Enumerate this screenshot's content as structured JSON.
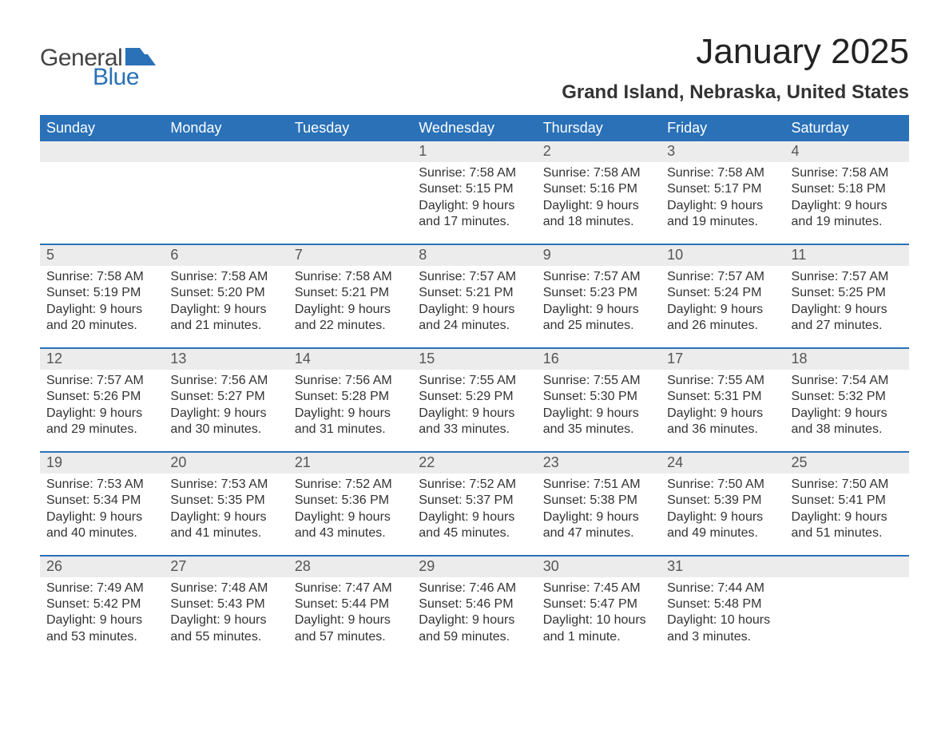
{
  "logo": {
    "text_general": "General",
    "text_blue": "Blue",
    "icon_color": "#2a71b8"
  },
  "header": {
    "month_title": "January 2025",
    "location": "Grand Island, Nebraska, United States"
  },
  "colors": {
    "header_bar": "#2a71b8",
    "daynum_strip_bg": "#ececec",
    "text": "#333333",
    "background": "#ffffff"
  },
  "typography": {
    "month_title_fontsize": 44,
    "location_fontsize": 24,
    "dow_fontsize": 18,
    "daynum_fontsize": 18,
    "body_fontsize": 16
  },
  "days_of_week": [
    "Sunday",
    "Monday",
    "Tuesday",
    "Wednesday",
    "Thursday",
    "Friday",
    "Saturday"
  ],
  "weeks": [
    [
      null,
      null,
      null,
      {
        "n": "1",
        "sunrise": "Sunrise: 7:58 AM",
        "sunset": "Sunset: 5:15 PM",
        "daylight": "Daylight: 9 hours and 17 minutes."
      },
      {
        "n": "2",
        "sunrise": "Sunrise: 7:58 AM",
        "sunset": "Sunset: 5:16 PM",
        "daylight": "Daylight: 9 hours and 18 minutes."
      },
      {
        "n": "3",
        "sunrise": "Sunrise: 7:58 AM",
        "sunset": "Sunset: 5:17 PM",
        "daylight": "Daylight: 9 hours and 19 minutes."
      },
      {
        "n": "4",
        "sunrise": "Sunrise: 7:58 AM",
        "sunset": "Sunset: 5:18 PM",
        "daylight": "Daylight: 9 hours and 19 minutes."
      }
    ],
    [
      {
        "n": "5",
        "sunrise": "Sunrise: 7:58 AM",
        "sunset": "Sunset: 5:19 PM",
        "daylight": "Daylight: 9 hours and 20 minutes."
      },
      {
        "n": "6",
        "sunrise": "Sunrise: 7:58 AM",
        "sunset": "Sunset: 5:20 PM",
        "daylight": "Daylight: 9 hours and 21 minutes."
      },
      {
        "n": "7",
        "sunrise": "Sunrise: 7:58 AM",
        "sunset": "Sunset: 5:21 PM",
        "daylight": "Daylight: 9 hours and 22 minutes."
      },
      {
        "n": "8",
        "sunrise": "Sunrise: 7:57 AM",
        "sunset": "Sunset: 5:21 PM",
        "daylight": "Daylight: 9 hours and 24 minutes."
      },
      {
        "n": "9",
        "sunrise": "Sunrise: 7:57 AM",
        "sunset": "Sunset: 5:23 PM",
        "daylight": "Daylight: 9 hours and 25 minutes."
      },
      {
        "n": "10",
        "sunrise": "Sunrise: 7:57 AM",
        "sunset": "Sunset: 5:24 PM",
        "daylight": "Daylight: 9 hours and 26 minutes."
      },
      {
        "n": "11",
        "sunrise": "Sunrise: 7:57 AM",
        "sunset": "Sunset: 5:25 PM",
        "daylight": "Daylight: 9 hours and 27 minutes."
      }
    ],
    [
      {
        "n": "12",
        "sunrise": "Sunrise: 7:57 AM",
        "sunset": "Sunset: 5:26 PM",
        "daylight": "Daylight: 9 hours and 29 minutes."
      },
      {
        "n": "13",
        "sunrise": "Sunrise: 7:56 AM",
        "sunset": "Sunset: 5:27 PM",
        "daylight": "Daylight: 9 hours and 30 minutes."
      },
      {
        "n": "14",
        "sunrise": "Sunrise: 7:56 AM",
        "sunset": "Sunset: 5:28 PM",
        "daylight": "Daylight: 9 hours and 31 minutes."
      },
      {
        "n": "15",
        "sunrise": "Sunrise: 7:55 AM",
        "sunset": "Sunset: 5:29 PM",
        "daylight": "Daylight: 9 hours and 33 minutes."
      },
      {
        "n": "16",
        "sunrise": "Sunrise: 7:55 AM",
        "sunset": "Sunset: 5:30 PM",
        "daylight": "Daylight: 9 hours and 35 minutes."
      },
      {
        "n": "17",
        "sunrise": "Sunrise: 7:55 AM",
        "sunset": "Sunset: 5:31 PM",
        "daylight": "Daylight: 9 hours and 36 minutes."
      },
      {
        "n": "18",
        "sunrise": "Sunrise: 7:54 AM",
        "sunset": "Sunset: 5:32 PM",
        "daylight": "Daylight: 9 hours and 38 minutes."
      }
    ],
    [
      {
        "n": "19",
        "sunrise": "Sunrise: 7:53 AM",
        "sunset": "Sunset: 5:34 PM",
        "daylight": "Daylight: 9 hours and 40 minutes."
      },
      {
        "n": "20",
        "sunrise": "Sunrise: 7:53 AM",
        "sunset": "Sunset: 5:35 PM",
        "daylight": "Daylight: 9 hours and 41 minutes."
      },
      {
        "n": "21",
        "sunrise": "Sunrise: 7:52 AM",
        "sunset": "Sunset: 5:36 PM",
        "daylight": "Daylight: 9 hours and 43 minutes."
      },
      {
        "n": "22",
        "sunrise": "Sunrise: 7:52 AM",
        "sunset": "Sunset: 5:37 PM",
        "daylight": "Daylight: 9 hours and 45 minutes."
      },
      {
        "n": "23",
        "sunrise": "Sunrise: 7:51 AM",
        "sunset": "Sunset: 5:38 PM",
        "daylight": "Daylight: 9 hours and 47 minutes."
      },
      {
        "n": "24",
        "sunrise": "Sunrise: 7:50 AM",
        "sunset": "Sunset: 5:39 PM",
        "daylight": "Daylight: 9 hours and 49 minutes."
      },
      {
        "n": "25",
        "sunrise": "Sunrise: 7:50 AM",
        "sunset": "Sunset: 5:41 PM",
        "daylight": "Daylight: 9 hours and 51 minutes."
      }
    ],
    [
      {
        "n": "26",
        "sunrise": "Sunrise: 7:49 AM",
        "sunset": "Sunset: 5:42 PM",
        "daylight": "Daylight: 9 hours and 53 minutes."
      },
      {
        "n": "27",
        "sunrise": "Sunrise: 7:48 AM",
        "sunset": "Sunset: 5:43 PM",
        "daylight": "Daylight: 9 hours and 55 minutes."
      },
      {
        "n": "28",
        "sunrise": "Sunrise: 7:47 AM",
        "sunset": "Sunset: 5:44 PM",
        "daylight": "Daylight: 9 hours and 57 minutes."
      },
      {
        "n": "29",
        "sunrise": "Sunrise: 7:46 AM",
        "sunset": "Sunset: 5:46 PM",
        "daylight": "Daylight: 9 hours and 59 minutes."
      },
      {
        "n": "30",
        "sunrise": "Sunrise: 7:45 AM",
        "sunset": "Sunset: 5:47 PM",
        "daylight": "Daylight: 10 hours and 1 minute."
      },
      {
        "n": "31",
        "sunrise": "Sunrise: 7:44 AM",
        "sunset": "Sunset: 5:48 PM",
        "daylight": "Daylight: 10 hours and 3 minutes."
      },
      null
    ]
  ]
}
